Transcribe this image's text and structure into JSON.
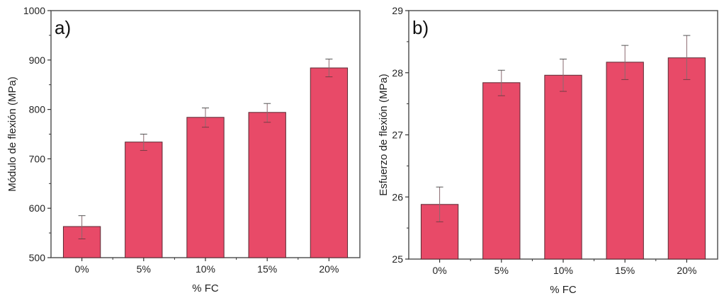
{
  "chart_data": [
    {
      "type": "bar",
      "panel_label": "a)",
      "title": "",
      "xlabel": "% FC",
      "ylabel": "Módulo de flexión (MPa)",
      "categories": [
        "0%",
        "5%",
        "10%",
        "15%",
        "20%"
      ],
      "values": [
        563,
        734,
        784,
        794,
        884
      ],
      "error_low": [
        538,
        717,
        764,
        774,
        866
      ],
      "error_high": [
        585,
        750,
        803,
        812,
        902
      ],
      "ylim": [
        500,
        1000
      ],
      "yticks": [
        500,
        600,
        700,
        800,
        900,
        1000
      ],
      "ytick_labels": [
        "500",
        "600",
        "700",
        "800",
        "900",
        "1000"
      ],
      "grid": false,
      "bar_color": "#e84a68"
    },
    {
      "type": "bar",
      "panel_label": "b)",
      "title": "",
      "xlabel": "% FC",
      "ylabel": "Esfuerzo de flexión (MPa)",
      "categories": [
        "0%",
        "5%",
        "10%",
        "15%",
        "20%"
      ],
      "values": [
        25.88,
        27.84,
        27.96,
        28.17,
        28.24
      ],
      "error_low": [
        25.6,
        27.63,
        27.7,
        27.89,
        27.89
      ],
      "error_high": [
        26.16,
        28.04,
        28.22,
        28.44,
        28.6
      ],
      "ylim": [
        25,
        29
      ],
      "yticks": [
        25,
        26,
        27,
        28,
        29
      ],
      "ytick_labels": [
        "25",
        "26",
        "27",
        "28",
        "29"
      ],
      "grid": false,
      "bar_color": "#e84a68"
    }
  ]
}
